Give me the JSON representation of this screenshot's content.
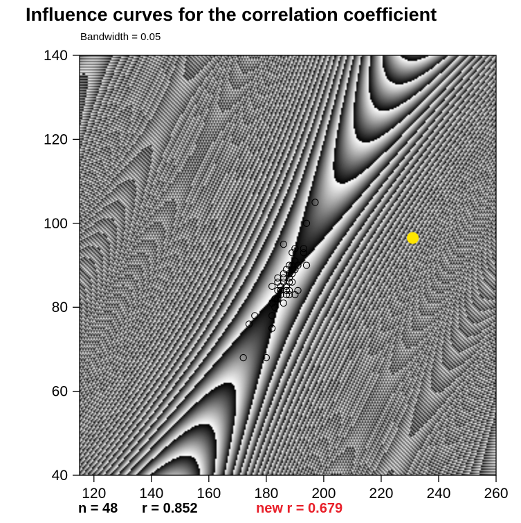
{
  "chart_data": {
    "type": "scatter",
    "title": "Influence curves for the correlation coefficient",
    "subtitle": "Bandwidth = 0.05",
    "xlabel": "",
    "ylabel": "",
    "xlim": [
      115,
      260
    ],
    "ylim": [
      40,
      140
    ],
    "x_ticks": [
      120,
      140,
      160,
      180,
      200,
      220,
      240,
      260
    ],
    "y_ticks": [
      40,
      60,
      80,
      100,
      120,
      140
    ],
    "n": 48,
    "r": 0.852,
    "new_r": 0.679,
    "highlight_point": {
      "x": 231,
      "y": 96.5
    },
    "points": [
      {
        "x": 172,
        "y": 68
      },
      {
        "x": 180,
        "y": 68
      },
      {
        "x": 174,
        "y": 76
      },
      {
        "x": 176,
        "y": 78
      },
      {
        "x": 182,
        "y": 75
      },
      {
        "x": 182,
        "y": 78
      },
      {
        "x": 182,
        "y": 81
      },
      {
        "x": 183,
        "y": 82
      },
      {
        "x": 184,
        "y": 82
      },
      {
        "x": 186,
        "y": 81
      },
      {
        "x": 182,
        "y": 85
      },
      {
        "x": 184,
        "y": 84
      },
      {
        "x": 185,
        "y": 85
      },
      {
        "x": 184,
        "y": 86
      },
      {
        "x": 184,
        "y": 87
      },
      {
        "x": 186,
        "y": 86
      },
      {
        "x": 186,
        "y": 87
      },
      {
        "x": 187,
        "y": 84
      },
      {
        "x": 187,
        "y": 83
      },
      {
        "x": 188,
        "y": 83
      },
      {
        "x": 188,
        "y": 86
      },
      {
        "x": 188,
        "y": 87
      },
      {
        "x": 188,
        "y": 88
      },
      {
        "x": 189,
        "y": 88
      },
      {
        "x": 189,
        "y": 89
      },
      {
        "x": 190,
        "y": 89
      },
      {
        "x": 189,
        "y": 90
      },
      {
        "x": 190,
        "y": 91
      },
      {
        "x": 191,
        "y": 90
      },
      {
        "x": 189,
        "y": 93
      },
      {
        "x": 190,
        "y": 94
      },
      {
        "x": 193,
        "y": 93
      },
      {
        "x": 193,
        "y": 94
      },
      {
        "x": 186,
        "y": 95
      },
      {
        "x": 191,
        "y": 84
      },
      {
        "x": 190,
        "y": 83
      },
      {
        "x": 194,
        "y": 90
      },
      {
        "x": 194,
        "y": 100
      },
      {
        "x": 197,
        "y": 105
      },
      {
        "x": 186,
        "y": 88
      },
      {
        "x": 185,
        "y": 84
      },
      {
        "x": 183,
        "y": 80
      },
      {
        "x": 187,
        "y": 85
      },
      {
        "x": 188,
        "y": 90
      },
      {
        "x": 187,
        "y": 89
      },
      {
        "x": 185,
        "y": 83
      },
      {
        "x": 189,
        "y": 86
      },
      {
        "x": 188,
        "y": 84
      }
    ]
  },
  "labels": {
    "n_text": "n = 48",
    "r_text": "r = 0.852",
    "new_r_text": "new r = 0.679"
  },
  "colors": {
    "highlight": "#ffe600",
    "new_r": "#e8202a",
    "field_dark": "#000000",
    "field_light": "#ffffff"
  }
}
